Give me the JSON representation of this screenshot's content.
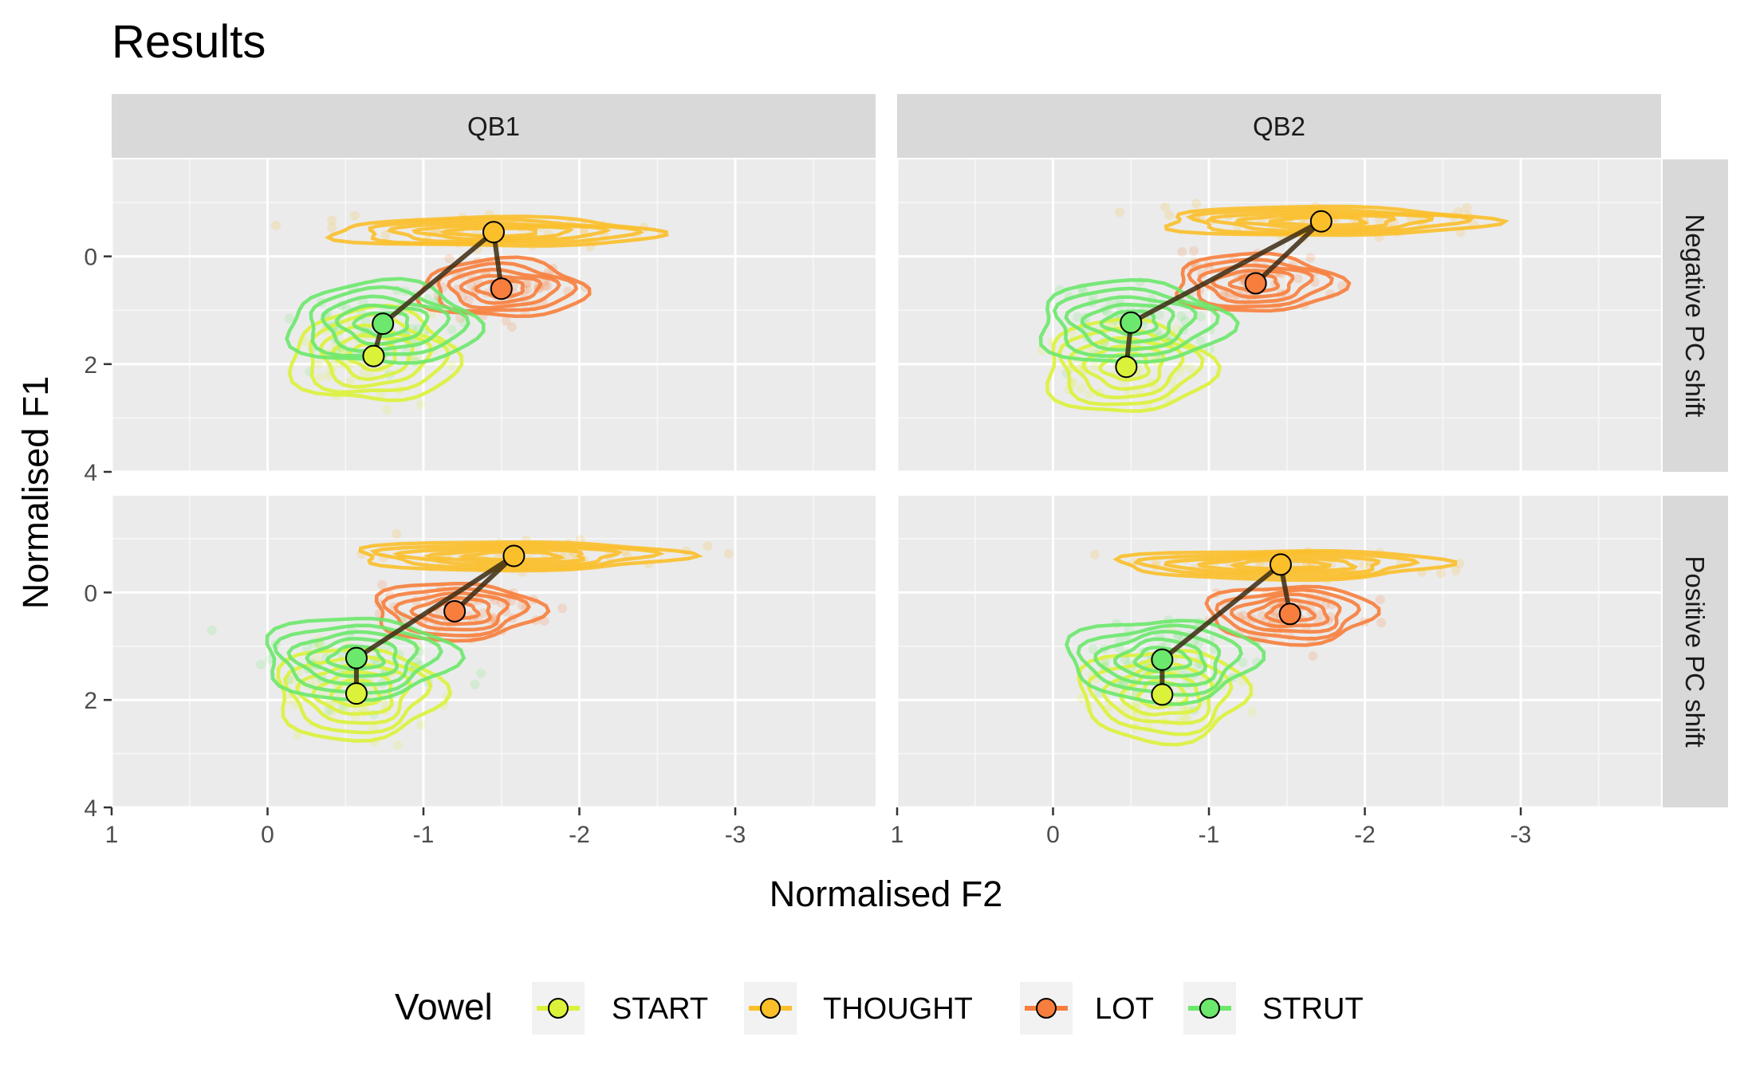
{
  "chart_data": {
    "type": "scatter",
    "title": "Results",
    "xlabel": "Normalised F2",
    "ylabel": "Normalised F1",
    "x_reversed": true,
    "y_reversed": true,
    "xlim": [
      1.0,
      -3.9
    ],
    "ylim": [
      -1.8,
      4.0
    ],
    "x_ticks": [
      1,
      0,
      -1,
      -2,
      -3
    ],
    "x_tick_labels": [
      "1",
      "0",
      "-1",
      "-2",
      "-3"
    ],
    "y_ticks": [
      0,
      2,
      4
    ],
    "y_tick_labels": [
      "0",
      "2",
      "4"
    ],
    "grid": true,
    "col_facets": [
      "QB1",
      "QB2"
    ],
    "row_facets": [
      "Negative PC shift",
      "Positive PC shift"
    ],
    "legend": {
      "title": "Vowel",
      "position": "bottom",
      "entries": [
        {
          "label": "START",
          "color": "#DCF23A"
        },
        {
          "label": "THOUGHT",
          "color": "#FBBF2A"
        },
        {
          "label": "LOT",
          "color": "#F77E3C"
        },
        {
          "label": "STRUT",
          "color": "#6CE86C"
        }
      ]
    },
    "path_color": "#3b2a12",
    "panels": [
      {
        "col": "QB1",
        "row": "Negative PC shift",
        "means": [
          {
            "vowel": "START",
            "x": -0.68,
            "y": 1.85
          },
          {
            "vowel": "THOUGHT",
            "x": -1.45,
            "y": -0.45
          },
          {
            "vowel": "LOT",
            "x": -1.5,
            "y": 0.6
          },
          {
            "vowel": "STRUT",
            "x": -0.74,
            "y": 1.25
          }
        ]
      },
      {
        "col": "QB2",
        "row": "Negative PC shift",
        "means": [
          {
            "vowel": "START",
            "x": -0.47,
            "y": 2.05
          },
          {
            "vowel": "THOUGHT",
            "x": -1.72,
            "y": -0.65
          },
          {
            "vowel": "LOT",
            "x": -1.3,
            "y": 0.5
          },
          {
            "vowel": "STRUT",
            "x": -0.5,
            "y": 1.23
          }
        ]
      },
      {
        "col": "QB1",
        "row": "Positive PC shift",
        "means": [
          {
            "vowel": "START",
            "x": -0.57,
            "y": 1.88
          },
          {
            "vowel": "THOUGHT",
            "x": -1.58,
            "y": -0.68
          },
          {
            "vowel": "LOT",
            "x": -1.2,
            "y": 0.35
          },
          {
            "vowel": "STRUT",
            "x": -0.57,
            "y": 1.22
          }
        ]
      },
      {
        "col": "QB2",
        "row": "Positive PC shift",
        "means": [
          {
            "vowel": "START",
            "x": -0.7,
            "y": 1.9
          },
          {
            "vowel": "THOUGHT",
            "x": -1.46,
            "y": -0.52
          },
          {
            "vowel": "LOT",
            "x": -1.52,
            "y": 0.4
          },
          {
            "vowel": "STRUT",
            "x": -0.7,
            "y": 1.25
          }
        ]
      }
    ]
  }
}
